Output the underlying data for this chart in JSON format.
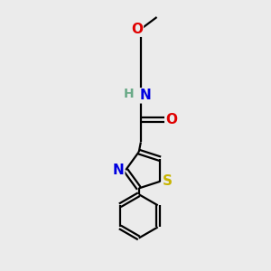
{
  "bg_color": "#ebebeb",
  "bond_color": "#000000",
  "atom_colors": {
    "O": "#e00000",
    "N": "#0000e0",
    "S": "#c8b400",
    "H": "#6aaa88",
    "C": "#000000"
  },
  "font_size": 11,
  "lw": 1.6
}
